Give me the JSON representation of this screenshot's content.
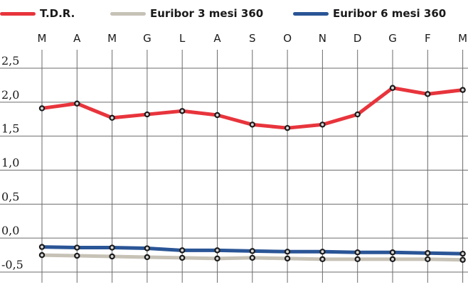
{
  "chart_data": {
    "type": "line",
    "categories": [
      "M",
      "A",
      "M",
      "G",
      "L",
      "A",
      "S",
      "O",
      "N",
      "D",
      "G",
      "F",
      "M"
    ],
    "yticks": [
      "2,5",
      "2,0",
      "1,5",
      "1,0",
      "0,5",
      "0,0",
      "-0,5"
    ],
    "ylim": [
      -0.5,
      2.5
    ],
    "grid": true,
    "legend_position": "top",
    "series": [
      {
        "name": "T.D.R.",
        "color": "#e8343c",
        "values": [
          1.91,
          1.98,
          1.77,
          1.82,
          1.87,
          1.81,
          1.67,
          1.62,
          1.67,
          1.82,
          2.21,
          2.12,
          2.18
        ]
      },
      {
        "name": "Euribor 3 mesi 360",
        "color": "#c7c2b6",
        "values": [
          -0.25,
          -0.26,
          -0.27,
          -0.28,
          -0.29,
          -0.3,
          -0.29,
          -0.3,
          -0.31,
          -0.31,
          -0.31,
          -0.31,
          -0.32
        ]
      },
      {
        "name": "Euribor 6 mesi 360",
        "color": "#2a5596",
        "values": [
          -0.13,
          -0.14,
          -0.14,
          -0.15,
          -0.18,
          -0.18,
          -0.19,
          -0.2,
          -0.2,
          -0.21,
          -0.21,
          -0.22,
          -0.23
        ]
      }
    ]
  }
}
